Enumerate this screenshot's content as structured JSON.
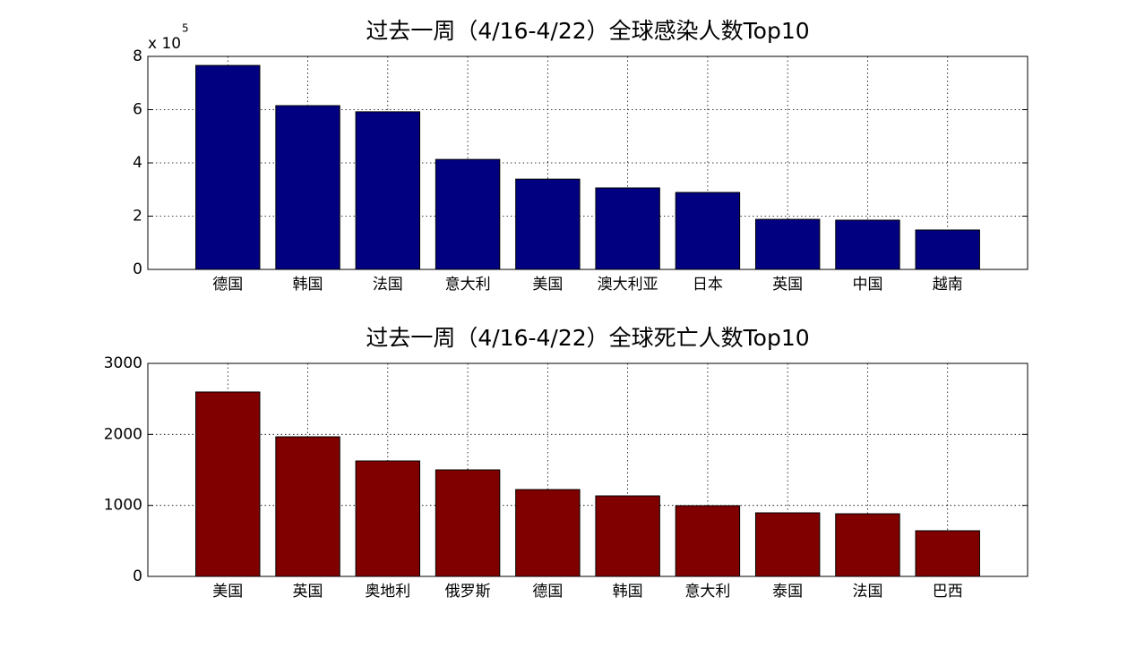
{
  "chart_data": [
    {
      "type": "bar",
      "title": "过去一周（4/16-4/22）全球感染人数Top10",
      "y_multiplier_base": "x 10",
      "y_multiplier_exponent": "5",
      "categories": [
        "德国",
        "韩国",
        "法国",
        "意大利",
        "美国",
        "澳大利亚",
        "日本",
        "英国",
        "中国",
        "越南"
      ],
      "values": [
        7.66,
        6.15,
        5.92,
        4.13,
        3.39,
        3.06,
        2.89,
        1.88,
        1.85,
        1.48
      ],
      "color": "#000080",
      "ylim": [
        0,
        8
      ],
      "yticks": [
        0,
        2,
        4,
        6,
        8
      ],
      "grid": true
    },
    {
      "type": "bar",
      "title": "过去一周（4/16-4/22）全球死亡人数Top10",
      "categories": [
        "美国",
        "英国",
        "奥地利",
        "俄罗斯",
        "德国",
        "韩国",
        "意大利",
        "泰国",
        "法国",
        "巴西"
      ],
      "values": [
        2597,
        1966,
        1626,
        1500,
        1223,
        1134,
        996,
        895,
        882,
        643
      ],
      "color": "#800000",
      "ylim": [
        0,
        3000
      ],
      "yticks": [
        0,
        1000,
        2000,
        3000
      ],
      "grid": true
    }
  ]
}
